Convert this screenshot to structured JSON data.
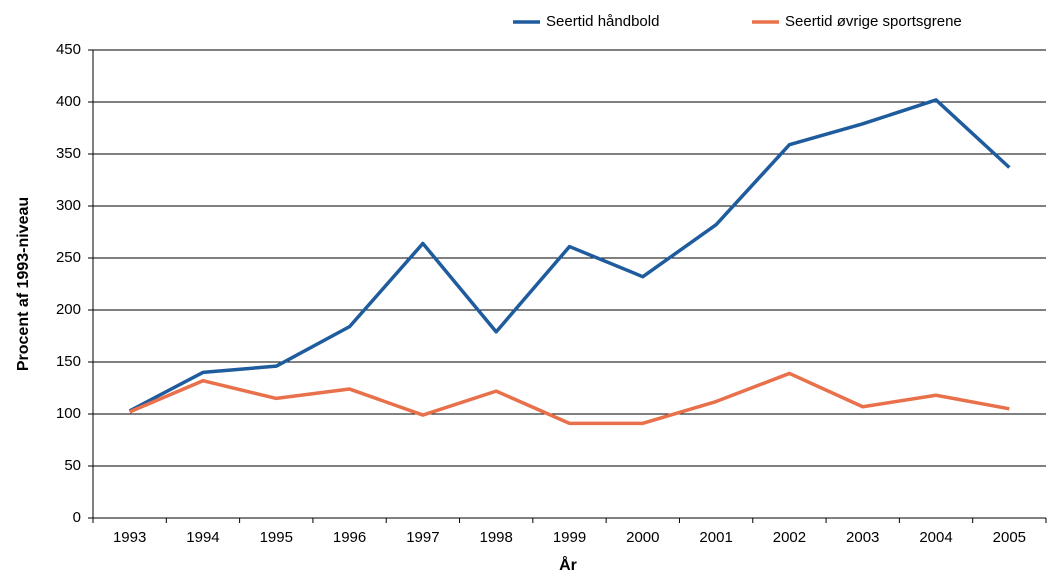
{
  "chart_data": {
    "type": "line",
    "x_label": "År",
    "y_label": "Procent af 1993-niveau",
    "categories": [
      "1993",
      "1994",
      "1995",
      "1996",
      "1997",
      "1998",
      "1999",
      "2000",
      "2001",
      "2002",
      "2003",
      "2004",
      "2005"
    ],
    "series": [
      {
        "name": "Seertid håndbold",
        "color": "#1f5c9e",
        "values": [
          103,
          140,
          146,
          184,
          264,
          179,
          261,
          232,
          282,
          359,
          379,
          402,
          337
        ]
      },
      {
        "name": "Seertid øvrige sportsgrene",
        "color": "#e8704a",
        "values": [
          102,
          132,
          115,
          124,
          99,
          122,
          91,
          91,
          112,
          139,
          107,
          118,
          105
        ]
      }
    ],
    "ylim": [
      0,
      450
    ],
    "yticks": [
      0,
      50,
      100,
      150,
      200,
      250,
      300,
      350,
      400,
      450
    ],
    "grid": true,
    "legend": "top-right"
  }
}
